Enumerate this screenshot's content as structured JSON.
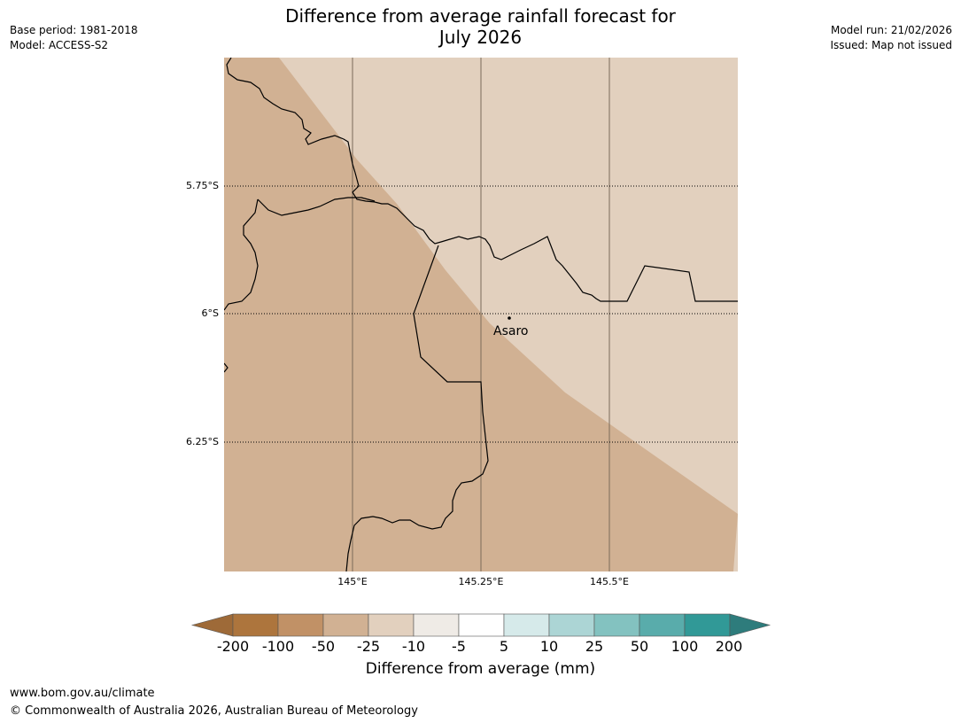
{
  "title_line1": "Difference from average rainfall forecast for",
  "title_line2": "July 2026",
  "base_period": "Base period: 1981-2018",
  "model": "Model: ACCESS-S2",
  "model_run": "Model run: 21/02/2026",
  "issued": "Issued: Map not issued",
  "lat_labels": [
    "5.75°S",
    "6°S",
    "6.25°S"
  ],
  "lon_labels": [
    "145°E",
    "145.25°E",
    "145.5°E"
  ],
  "place_label": "Asaro",
  "colorbar": {
    "title": "Difference from average (mm)",
    "ticks": [
      "-200",
      "-100",
      "-50",
      "-25",
      "-10",
      "-5",
      "5",
      "10",
      "25",
      "50",
      "100",
      "200"
    ],
    "colors": [
      "#9e6a38",
      "#ad753d",
      "#c19166",
      "#d1b193",
      "#e2d0be",
      "#efebe6",
      "#ffffff",
      "#d6eaea",
      "#acd5d5",
      "#83c2c0",
      "#59acab",
      "#319997",
      "#2e7c7c"
    ]
  },
  "map_colors": {
    "dry_strong": "#d1b193",
    "dry_light": "#e2d0be"
  },
  "footer_url": "www.bom.gov.au/climate",
  "footer_copyright": "© Commonwealth of Australia 2026, Australian Bureau of Meteorology"
}
